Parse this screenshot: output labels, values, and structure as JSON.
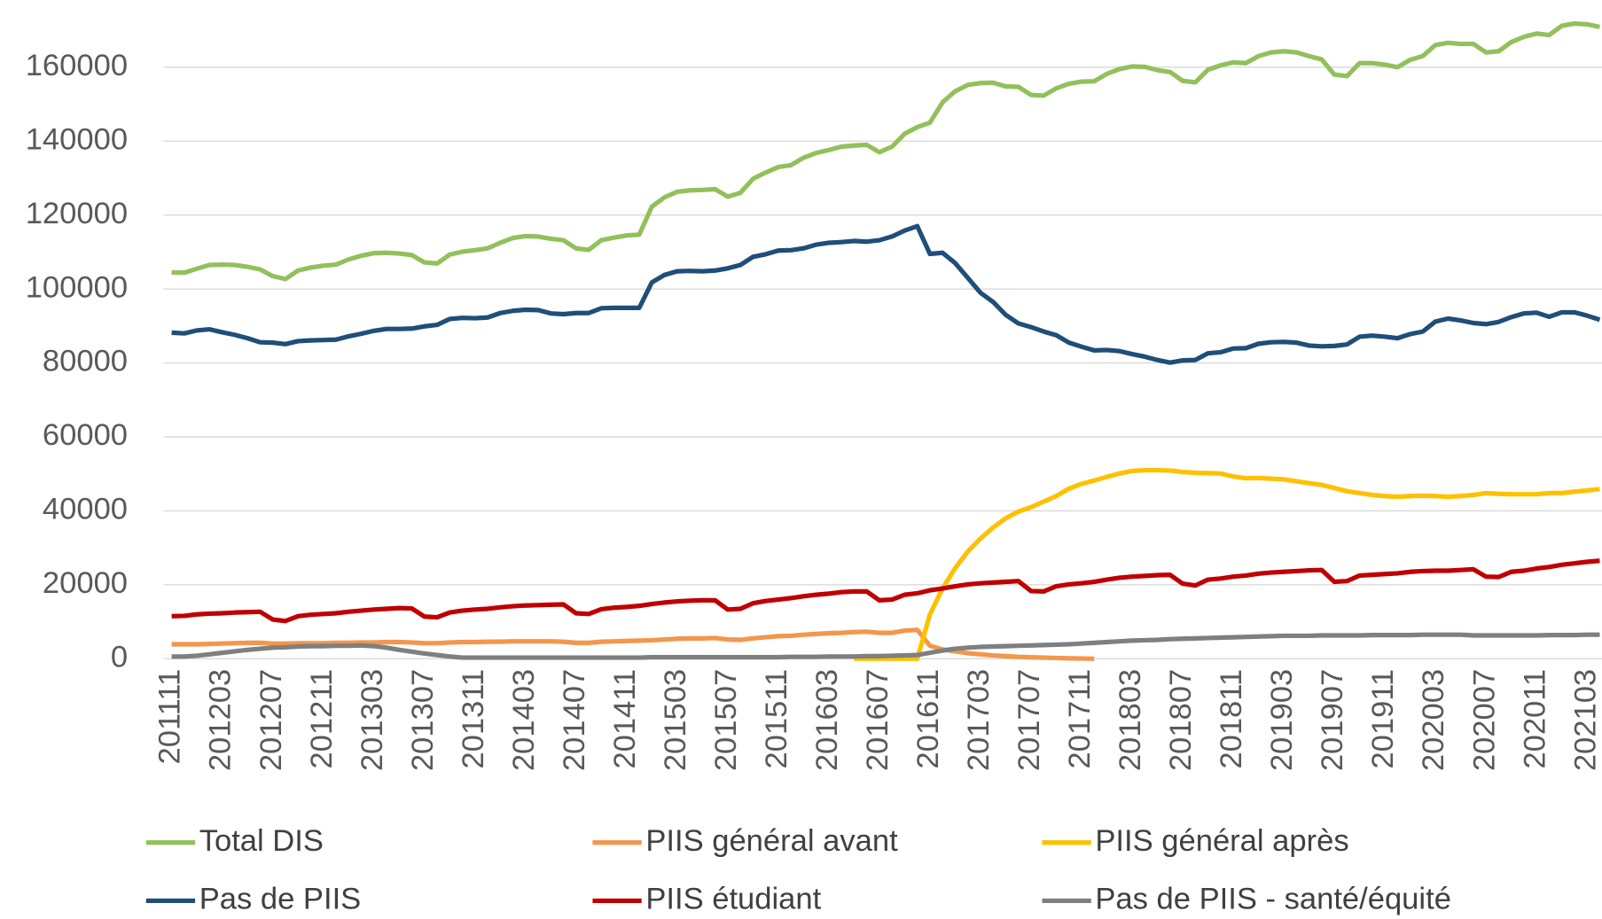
{
  "chart_data": {
    "type": "line",
    "categories": [
      "201111",
      null,
      null,
      null,
      "201203",
      null,
      null,
      null,
      "201207",
      null,
      null,
      null,
      "201211",
      null,
      null,
      null,
      "201303",
      null,
      null,
      null,
      "201307",
      null,
      null,
      null,
      "201311",
      null,
      null,
      null,
      "201403",
      null,
      null,
      null,
      "201407",
      null,
      null,
      null,
      "201411",
      null,
      null,
      null,
      "201503",
      null,
      null,
      null,
      "201507",
      null,
      null,
      null,
      "201511",
      null,
      null,
      null,
      "201603",
      null,
      null,
      null,
      "201607",
      null,
      null,
      null,
      "201611",
      null,
      null,
      null,
      "201703",
      null,
      null,
      null,
      "201707",
      null,
      null,
      null,
      "201711",
      null,
      null,
      null,
      "201803",
      null,
      null,
      null,
      "201807",
      null,
      null,
      null,
      "201811",
      null,
      null,
      null,
      "201903",
      null,
      null,
      null,
      "201907",
      null,
      null,
      null,
      "201911",
      null,
      null,
      null,
      "202003",
      null,
      null,
      null,
      "202007",
      null,
      null,
      null,
      "202011",
      null,
      null,
      null,
      "202103",
      null
    ],
    "series": [
      {
        "name": "Total DIS",
        "color": "#92c05b",
        "values": [
          104500,
          104400,
          105500,
          106500,
          106600,
          106500,
          106000,
          105300,
          103500,
          102700,
          105000,
          105800,
          106300,
          106600,
          108000,
          109000,
          109700,
          109800,
          109600,
          109200,
          107200,
          106900,
          109300,
          110100,
          110500,
          111000,
          112500,
          113800,
          114300,
          114200,
          113600,
          113200,
          111000,
          110600,
          113200,
          113900,
          114500,
          114700,
          122300,
          124800,
          126300,
          126700,
          126800,
          127000,
          125000,
          126000,
          129800,
          131500,
          133000,
          133500,
          135500,
          136800,
          137600,
          138500,
          138800,
          139000,
          137000,
          138500,
          142000,
          143800,
          145000,
          150500,
          153500,
          155200,
          155700,
          155800,
          154800,
          154700,
          152500,
          152300,
          154300,
          155500,
          156100,
          156200,
          158200,
          159500,
          160200,
          160100,
          159200,
          158700,
          156300,
          155900,
          159300,
          160500,
          161300,
          161100,
          163000,
          164000,
          164300,
          164000,
          163000,
          162100,
          158000,
          157600,
          161100,
          161100,
          160700,
          160000,
          162000,
          163000,
          166000,
          166600,
          166300,
          166300,
          164000,
          164300,
          166800,
          168200,
          169100,
          168700,
          171200,
          171800,
          171600,
          170900
        ]
      },
      {
        "name": "PIIS général avant",
        "color": "#f4964b",
        "values": [
          3900,
          3900,
          3900,
          4000,
          4100,
          4200,
          4300,
          4300,
          4100,
          4100,
          4200,
          4200,
          4200,
          4300,
          4300,
          4400,
          4400,
          4500,
          4500,
          4400,
          4200,
          4200,
          4400,
          4500,
          4500,
          4600,
          4600,
          4700,
          4700,
          4700,
          4700,
          4600,
          4300,
          4300,
          4600,
          4700,
          4800,
          4900,
          5000,
          5200,
          5400,
          5500,
          5500,
          5600,
          5200,
          5100,
          5500,
          5800,
          6100,
          6200,
          6500,
          6700,
          6900,
          7000,
          7200,
          7300,
          7000,
          7000,
          7600,
          7800,
          3500,
          2500,
          2000,
          1500,
          1200,
          900,
          700,
          500,
          400,
          300,
          200,
          100,
          50,
          0,
          null,
          null,
          null,
          null,
          null,
          null,
          null,
          null,
          null,
          null,
          null,
          null,
          null,
          null,
          null,
          null,
          null,
          null,
          null,
          null,
          null,
          null,
          null,
          null,
          null,
          null,
          null,
          null,
          null,
          null,
          null,
          null,
          null,
          null,
          null,
          null,
          null,
          null,
          null,
          null
        ]
      },
      {
        "name": "PIIS général après",
        "color": "#ffc000",
        "values": [
          null,
          null,
          null,
          null,
          null,
          null,
          null,
          null,
          null,
          null,
          null,
          null,
          null,
          null,
          null,
          null,
          null,
          null,
          null,
          null,
          null,
          null,
          null,
          null,
          null,
          null,
          null,
          null,
          null,
          null,
          null,
          null,
          null,
          null,
          null,
          null,
          null,
          null,
          null,
          null,
          null,
          null,
          null,
          null,
          null,
          null,
          null,
          null,
          null,
          null,
          null,
          null,
          null,
          null,
          0,
          0,
          0,
          0,
          0,
          0,
          12000,
          19000,
          24500,
          29000,
          32500,
          35500,
          38000,
          39800,
          41000,
          42500,
          44000,
          46000,
          47300,
          48200,
          49200,
          50100,
          50800,
          51000,
          51000,
          50900,
          50500,
          50300,
          50200,
          50100,
          49300,
          48800,
          48900,
          48700,
          48500,
          48000,
          47500,
          47000,
          46200,
          45300,
          44800,
          44300,
          44000,
          43800,
          44000,
          44100,
          44000,
          43800,
          44000,
          44300,
          44800,
          44600,
          44500,
          44500,
          44500,
          44800,
          44800,
          45200,
          45500,
          45900
        ]
      },
      {
        "name": "Pas de PIIS",
        "color": "#1f4e79",
        "values": [
          88200,
          88000,
          88800,
          89100,
          88300,
          87600,
          86700,
          85600,
          85500,
          85100,
          85900,
          86100,
          86200,
          86300,
          87200,
          87900,
          88700,
          89200,
          89200,
          89300,
          89900,
          90300,
          91900,
          92200,
          92100,
          92300,
          93500,
          94100,
          94400,
          94300,
          93400,
          93200,
          93500,
          93500,
          94800,
          94900,
          94900,
          94900,
          101800,
          103800,
          104800,
          104900,
          104800,
          105000,
          105600,
          106500,
          108700,
          109400,
          110400,
          110500,
          111000,
          112000,
          112500,
          112700,
          113000,
          112800,
          113200,
          114200,
          115800,
          117000,
          109500,
          109800,
          107000,
          103000,
          99000,
          96500,
          93000,
          90700,
          89700,
          88500,
          87500,
          85500,
          84400,
          83400,
          83500,
          83200,
          82400,
          81700,
          80800,
          80100,
          80700,
          80800,
          82600,
          82900,
          83900,
          84000,
          85200,
          85600,
          85700,
          85500,
          84700,
          84500,
          84600,
          85000,
          87100,
          87400,
          87100,
          86700,
          87800,
          88500,
          91200,
          92000,
          91500,
          90800,
          90500,
          91100,
          92400,
          93400,
          93600,
          92500,
          93700,
          93700,
          92800,
          91700
        ]
      },
      {
        "name": "PIIS étudiant",
        "color": "#c00000",
        "values": [
          11500,
          11600,
          12000,
          12200,
          12300,
          12500,
          12600,
          12700,
          10600,
          10200,
          11500,
          11900,
          12100,
          12300,
          12700,
          13000,
          13300,
          13500,
          13700,
          13600,
          11400,
          11200,
          12500,
          13000,
          13300,
          13500,
          13900,
          14200,
          14400,
          14500,
          14600,
          14700,
          12300,
          12100,
          13400,
          13800,
          14000,
          14300,
          14800,
          15200,
          15500,
          15700,
          15800,
          15800,
          13300,
          13500,
          15000,
          15600,
          16000,
          16400,
          16900,
          17300,
          17600,
          18000,
          18200,
          18200,
          15800,
          16000,
          17300,
          17700,
          18500,
          19000,
          19600,
          20100,
          20400,
          20600,
          20800,
          21000,
          18300,
          18200,
          19600,
          20100,
          20400,
          20800,
          21400,
          21900,
          22200,
          22400,
          22600,
          22700,
          20300,
          19800,
          21400,
          21700,
          22200,
          22500,
          23000,
          23300,
          23500,
          23700,
          23900,
          24000,
          20800,
          21000,
          22500,
          22700,
          22900,
          23100,
          23500,
          23700,
          23800,
          23800,
          24000,
          24200,
          22200,
          22100,
          23500,
          23800,
          24400,
          24800,
          25400,
          25800,
          26200,
          26500
        ]
      },
      {
        "name": "Pas de PIIS - santé/équité",
        "color": "#7f7f7f",
        "values": [
          600,
          600,
          800,
          1200,
          1600,
          2000,
          2400,
          2700,
          3000,
          3100,
          3300,
          3400,
          3400,
          3500,
          3500,
          3600,
          3400,
          3000,
          2400,
          1900,
          1400,
          1000,
          600,
          300,
          300,
          300,
          300,
          300,
          300,
          300,
          300,
          300,
          300,
          300,
          300,
          300,
          300,
          300,
          400,
          400,
          400,
          400,
          400,
          400,
          400,
          400,
          400,
          400,
          400,
          500,
          500,
          500,
          600,
          600,
          600,
          700,
          700,
          800,
          900,
          1000,
          1600,
          2200,
          2700,
          3000,
          3200,
          3300,
          3400,
          3500,
          3600,
          3700,
          3800,
          3900,
          4100,
          4300,
          4500,
          4700,
          4900,
          5000,
          5100,
          5300,
          5400,
          5500,
          5600,
          5700,
          5800,
          5900,
          6000,
          6100,
          6200,
          6200,
          6200,
          6300,
          6300,
          6300,
          6300,
          6400,
          6400,
          6400,
          6400,
          6500,
          6500,
          6500,
          6500,
          6300,
          6300,
          6300,
          6300,
          6300,
          6300,
          6400,
          6400,
          6400,
          6500,
          6500
        ]
      }
    ],
    "ylim": [
      0,
      180000
    ],
    "yticks": [
      0,
      20000,
      40000,
      60000,
      80000,
      100000,
      120000,
      140000,
      160000
    ],
    "grid": true,
    "legend": "bottom"
  }
}
